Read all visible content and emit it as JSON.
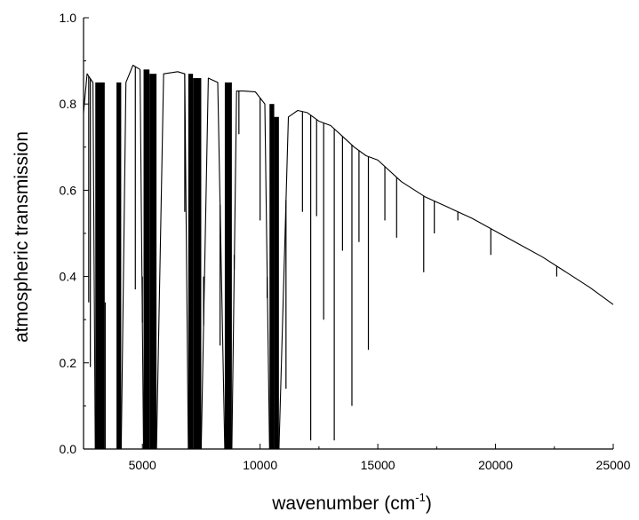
{
  "chart_data": {
    "type": "line",
    "title": "",
    "xlabel": "wavenumber (cm",
    "xlabel_superscript": "-1",
    "xlabel_suffix": ")",
    "ylabel": "atmospheric transmission",
    "xlim": [
      2500,
      25000
    ],
    "ylim": [
      0.0,
      1.0
    ],
    "x_ticks": [
      5000,
      10000,
      15000,
      20000,
      25000
    ],
    "x_tick_labels": [
      "5000",
      "10000",
      "15000",
      "20000",
      "25000"
    ],
    "y_ticks": [
      0.0,
      0.2,
      0.4,
      0.6,
      0.8,
      1.0
    ],
    "y_tick_labels": [
      "0.0",
      "0.2",
      "0.4",
      "0.6",
      "0.8",
      "1.0"
    ],
    "grid": false,
    "legend": "none",
    "line_color": "#000000",
    "series": [
      {
        "x": [
          2500,
          2650,
          2900,
          3000,
          3400,
          3900,
          4100,
          4300,
          4600,
          4900,
          5050,
          5300,
          5600,
          5900,
          6500,
          6800,
          6950,
          7150,
          7500,
          7800,
          8000,
          8200,
          8500,
          8800,
          9000,
          9300,
          9800,
          10200,
          10400,
          10600,
          10800,
          11200,
          11600,
          12000,
          12500,
          13000,
          13500,
          14000,
          14500,
          15000,
          16000,
          17000,
          18000,
          19000,
          20000,
          21000,
          22000,
          23000,
          24000,
          25000
        ],
        "y": [
          0.78,
          0.87,
          0.85,
          0.0,
          0.0,
          0.0,
          0.0,
          0.85,
          0.89,
          0.88,
          0.0,
          0.0,
          0.0,
          0.87,
          0.875,
          0.87,
          0.0,
          0.0,
          0.0,
          0.86,
          0.855,
          0.85,
          0.0,
          0.0,
          0.83,
          0.83,
          0.828,
          0.8,
          0.0,
          0.0,
          0.0,
          0.77,
          0.785,
          0.78,
          0.76,
          0.75,
          0.725,
          0.7,
          0.68,
          0.67,
          0.62,
          0.585,
          0.56,
          0.535,
          0.505,
          0.475,
          0.445,
          0.41,
          0.375,
          0.335
        ]
      }
    ],
    "absorption_band_minima": [
      {
        "x": 2720,
        "y": 0.34
      },
      {
        "x": 2790,
        "y": 0.19
      },
      {
        "x": 3290,
        "y": 0.58
      },
      {
        "x": 3420,
        "y": 0.34
      },
      {
        "x": 4700,
        "y": 0.37
      },
      {
        "x": 5000,
        "y": 0.4
      },
      {
        "x": 6800,
        "y": 0.55
      },
      {
        "x": 7600,
        "y": 0.4
      },
      {
        "x": 8300,
        "y": 0.24
      },
      {
        "x": 8600,
        "y": 0.08
      },
      {
        "x": 8900,
        "y": 0.45
      },
      {
        "x": 9100,
        "y": 0.73
      },
      {
        "x": 10000,
        "y": 0.53
      },
      {
        "x": 10300,
        "y": 0.35
      },
      {
        "x": 11100,
        "y": 0.14
      },
      {
        "x": 11800,
        "y": 0.55
      },
      {
        "x": 12150,
        "y": 0.02
      },
      {
        "x": 12400,
        "y": 0.54
      },
      {
        "x": 12700,
        "y": 0.3
      },
      {
        "x": 13150,
        "y": 0.02
      },
      {
        "x": 13500,
        "y": 0.46
      },
      {
        "x": 13900,
        "y": 0.1
      },
      {
        "x": 14200,
        "y": 0.48
      },
      {
        "x": 14600,
        "y": 0.23
      },
      {
        "x": 15300,
        "y": 0.53
      },
      {
        "x": 15800,
        "y": 0.49
      },
      {
        "x": 16950,
        "y": 0.41
      },
      {
        "x": 17400,
        "y": 0.5
      },
      {
        "x": 18400,
        "y": 0.53
      },
      {
        "x": 19800,
        "y": 0.45
      },
      {
        "x": 22600,
        "y": 0.4
      }
    ]
  }
}
